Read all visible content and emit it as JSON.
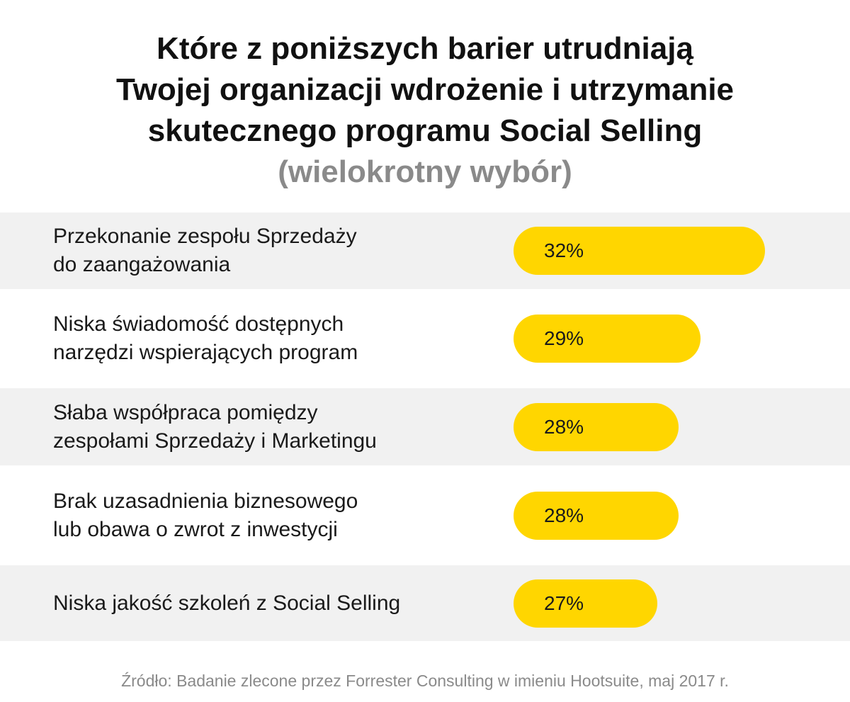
{
  "chart_data": {
    "type": "bar",
    "title_lines": [
      "Które z poniższych barier utrudniają",
      "Twojej organizacji wdrożenie i utrzymanie",
      "skutecznego programu Social Selling"
    ],
    "subtitle": "(wielokrotny wybór)",
    "categories": [
      [
        "Przekonanie zespołu Sprzedaży",
        "do zaangażowania"
      ],
      [
        "Niska świadomość dostępnych",
        "narzędzi wspierających program"
      ],
      [
        "Słaba współpraca pomiędzy",
        "zespołami Sprzedaży i Marketingu"
      ],
      [
        "Brak uzasadnienia biznesowego",
        "lub obawa o zwrot z inwestycji"
      ],
      [
        "Niska jakość szkoleń z Social Selling"
      ]
    ],
    "values": [
      32,
      29,
      28,
      28,
      27
    ],
    "value_labels": [
      "32%",
      "29%",
      "28%",
      "28%",
      "27%"
    ],
    "unit": "%",
    "bar_color": "#FFD600",
    "source": "Źródło: Badanie zlecone przez Forrester Consulting w imieniu Hootsuite, maj 2017 r."
  }
}
